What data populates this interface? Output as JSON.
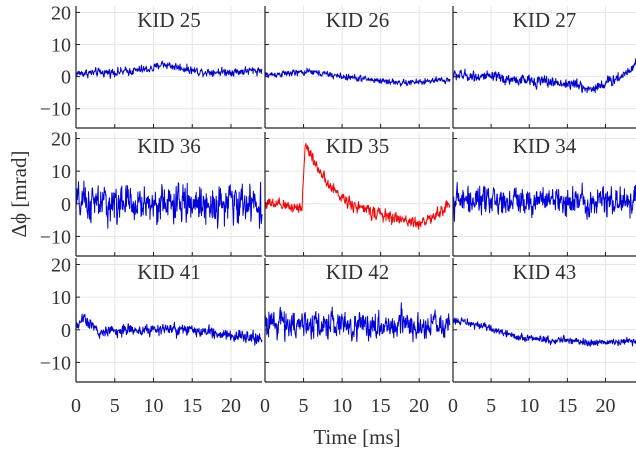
{
  "chart_data": {
    "type": "line",
    "grid": true,
    "layout": {
      "rows": 3,
      "cols": 3
    },
    "xlabel": "Time [ms]",
    "ylabel": "Δϕ [mrad]",
    "xlim": [
      0,
      24
    ],
    "ylim": [
      -16,
      22
    ],
    "x_ticks": [
      0,
      5,
      10,
      15,
      20
    ],
    "y_ticks": [
      -10,
      0,
      10,
      20
    ],
    "x_tick_labels": [
      "0",
      "5",
      "10",
      "15",
      "20"
    ],
    "y_tick_labels": [
      "−10",
      "0",
      "10",
      "20"
    ],
    "series_colors": {
      "normal": "#0000dd",
      "highlight": "#ff0000"
    },
    "panels": [
      {
        "title": "KID 25",
        "color": "#0000dd",
        "noise": 0.9,
        "baseline": [
          [
            0,
            1
          ],
          [
            6,
            1.5
          ],
          [
            10,
            2.5
          ],
          [
            11,
            4
          ],
          [
            13,
            3
          ],
          [
            16,
            1.5
          ],
          [
            20,
            1.5
          ],
          [
            24,
            2
          ]
        ]
      },
      {
        "title": "KID 26",
        "color": "#0000dd",
        "noise": 0.7,
        "baseline": [
          [
            0,
            0.5
          ],
          [
            6,
            1.5
          ],
          [
            10,
            0
          ],
          [
            14,
            -1
          ],
          [
            18,
            -2
          ],
          [
            24,
            -1
          ]
        ]
      },
      {
        "title": "KID 27",
        "color": "#0000dd",
        "noise": 1.2,
        "baseline": [
          [
            0,
            0.5
          ],
          [
            4,
            0
          ],
          [
            8,
            -1
          ],
          [
            12,
            -1.5
          ],
          [
            16,
            -2.5
          ],
          [
            18,
            -4
          ],
          [
            20,
            -2
          ],
          [
            22,
            0
          ],
          [
            24,
            4
          ]
        ]
      },
      {
        "title": "KID 36",
        "color": "#0000dd",
        "noise": 4.0,
        "baseline": [
          [
            0,
            0
          ],
          [
            24,
            0
          ]
        ]
      },
      {
        "title": "KID 35",
        "color": "#ff0000",
        "noise": 1.3,
        "baseline": [
          [
            0,
            0
          ],
          [
            4,
            -1
          ],
          [
            4.8,
            -1
          ],
          [
            5.2,
            18
          ],
          [
            6,
            15
          ],
          [
            8,
            6
          ],
          [
            10,
            2
          ],
          [
            12,
            -1
          ],
          [
            16,
            -4
          ],
          [
            20,
            -6
          ],
          [
            22,
            -4
          ],
          [
            24,
            0
          ]
        ]
      },
      {
        "title": "KID 34",
        "color": "#0000dd",
        "noise": 3.0,
        "baseline": [
          [
            0,
            1
          ],
          [
            24,
            1
          ]
        ]
      },
      {
        "title": "KID 41",
        "color": "#0000dd",
        "noise": 1.3,
        "baseline": [
          [
            0,
            1
          ],
          [
            1,
            4
          ],
          [
            3,
            -1
          ],
          [
            6,
            0
          ],
          [
            12,
            0
          ],
          [
            18,
            -1
          ],
          [
            24,
            -3
          ]
        ]
      },
      {
        "title": "KID 42",
        "color": "#0000dd",
        "noise": 3.0,
        "baseline": [
          [
            0,
            2
          ],
          [
            24,
            1
          ]
        ]
      },
      {
        "title": "KID 43",
        "color": "#0000dd",
        "noise": 0.8,
        "baseline": [
          [
            0,
            3
          ],
          [
            4,
            1
          ],
          [
            8,
            -2
          ],
          [
            12,
            -3
          ],
          [
            16,
            -3.5
          ],
          [
            20,
            -4
          ],
          [
            24,
            -3.5
          ]
        ]
      }
    ]
  }
}
